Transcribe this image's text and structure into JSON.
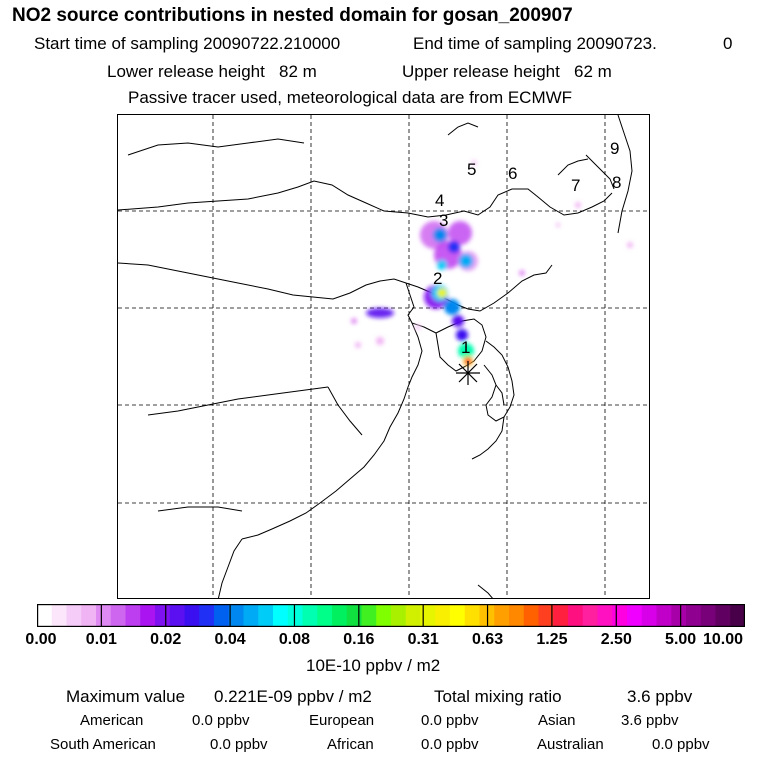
{
  "header": {
    "title": "NO2 source contributions in nested domain for gosan_200907",
    "start_label": "Start time of sampling 20090722.210000",
    "end_label": "End time of sampling 20090723.",
    "end_suffix": "0",
    "lower_height": "Lower release height   82 m",
    "upper_height": "Upper release height   62 m",
    "tracer_note": "Passive tracer used, meteorological data are from ECMWF"
  },
  "map": {
    "receptor_symbol": "asterisk",
    "trajectory_labels": [
      "1",
      "2",
      "3",
      "4",
      "5",
      "6",
      "7",
      "8",
      "9"
    ]
  },
  "colorbar": {
    "ticks": [
      "0.00",
      "0.01",
      "0.02",
      "0.04",
      "0.08",
      "0.16",
      "0.31",
      "0.63",
      "1.25",
      "2.50",
      "5.00",
      "10.00"
    ],
    "colors": [
      "#ffffff",
      "#fbe6fb",
      "#f5ccf7",
      "#f0b3f3",
      "#de8af2",
      "#cf66f0",
      "#bd3df0",
      "#aa14f0",
      "#7f10f0",
      "#5a10f0",
      "#3a10f0",
      "#2030f5",
      "#0060f0",
      "#0088f0",
      "#00aaf5",
      "#00ccf8",
      "#00ffff",
      "#00ffdd",
      "#00ffb0",
      "#00ff88",
      "#00f060",
      "#10e040",
      "#40f020",
      "#80ff00",
      "#a8f000",
      "#d0f000",
      "#e8f500",
      "#f8f000",
      "#ffff00",
      "#ffe000",
      "#ffc000",
      "#ffa000",
      "#ff8800",
      "#ff6000",
      "#ff4020",
      "#ff2040",
      "#ff1080",
      "#ff20a0",
      "#ff10c0",
      "#ff00e0",
      "#f000ff",
      "#d800e8",
      "#c000c8",
      "#a800a8",
      "#900090",
      "#780078",
      "#600060",
      "#480048"
    ],
    "units": "10E-10 ppbv / m2"
  },
  "stats": {
    "max_label": "Maximum value",
    "max_value": "0.221E-09 ppbv / m2",
    "total_label": "Total mixing ratio",
    "total_value": "3.6 ppbv",
    "sources": [
      {
        "name": "American",
        "value": "0.0 ppbv"
      },
      {
        "name": "European",
        "value": "0.0 ppbv"
      },
      {
        "name": "Asian",
        "value": "3.6 ppbv"
      },
      {
        "name": "South American",
        "value": "0.0 ppbv"
      },
      {
        "name": "African",
        "value": "0.0 ppbv"
      },
      {
        "name": "Australian",
        "value": "0.0 ppbv"
      }
    ]
  }
}
